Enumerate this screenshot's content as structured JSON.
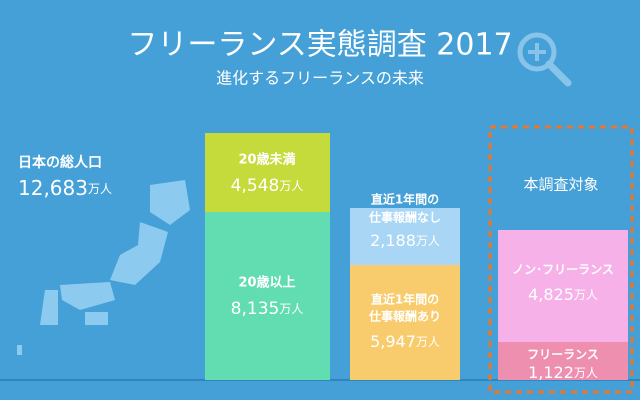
{
  "header": {
    "title": "フリーランス実態調査 2017",
    "subtitle": "進化するフリーランスの未来"
  },
  "unit": "万人",
  "population": {
    "label": "日本の総人口",
    "value": "12,683"
  },
  "age": [
    {
      "label": "20歳未満",
      "value": "4,548"
    },
    {
      "label": "20歳以上",
      "value": "8,135"
    }
  ],
  "work": [
    {
      "label": [
        "直近1年間の",
        "仕事報酬なし"
      ],
      "value": "2,188"
    },
    {
      "label": [
        "直近1年間の",
        "仕事報酬あり"
      ],
      "value": "5,947"
    }
  ],
  "target": {
    "title": "本調査対象",
    "groups": [
      {
        "label": "ノン･フリーランス",
        "value": "4,825"
      },
      {
        "label": "フリーランス",
        "value": "1,122"
      }
    ]
  }
}
